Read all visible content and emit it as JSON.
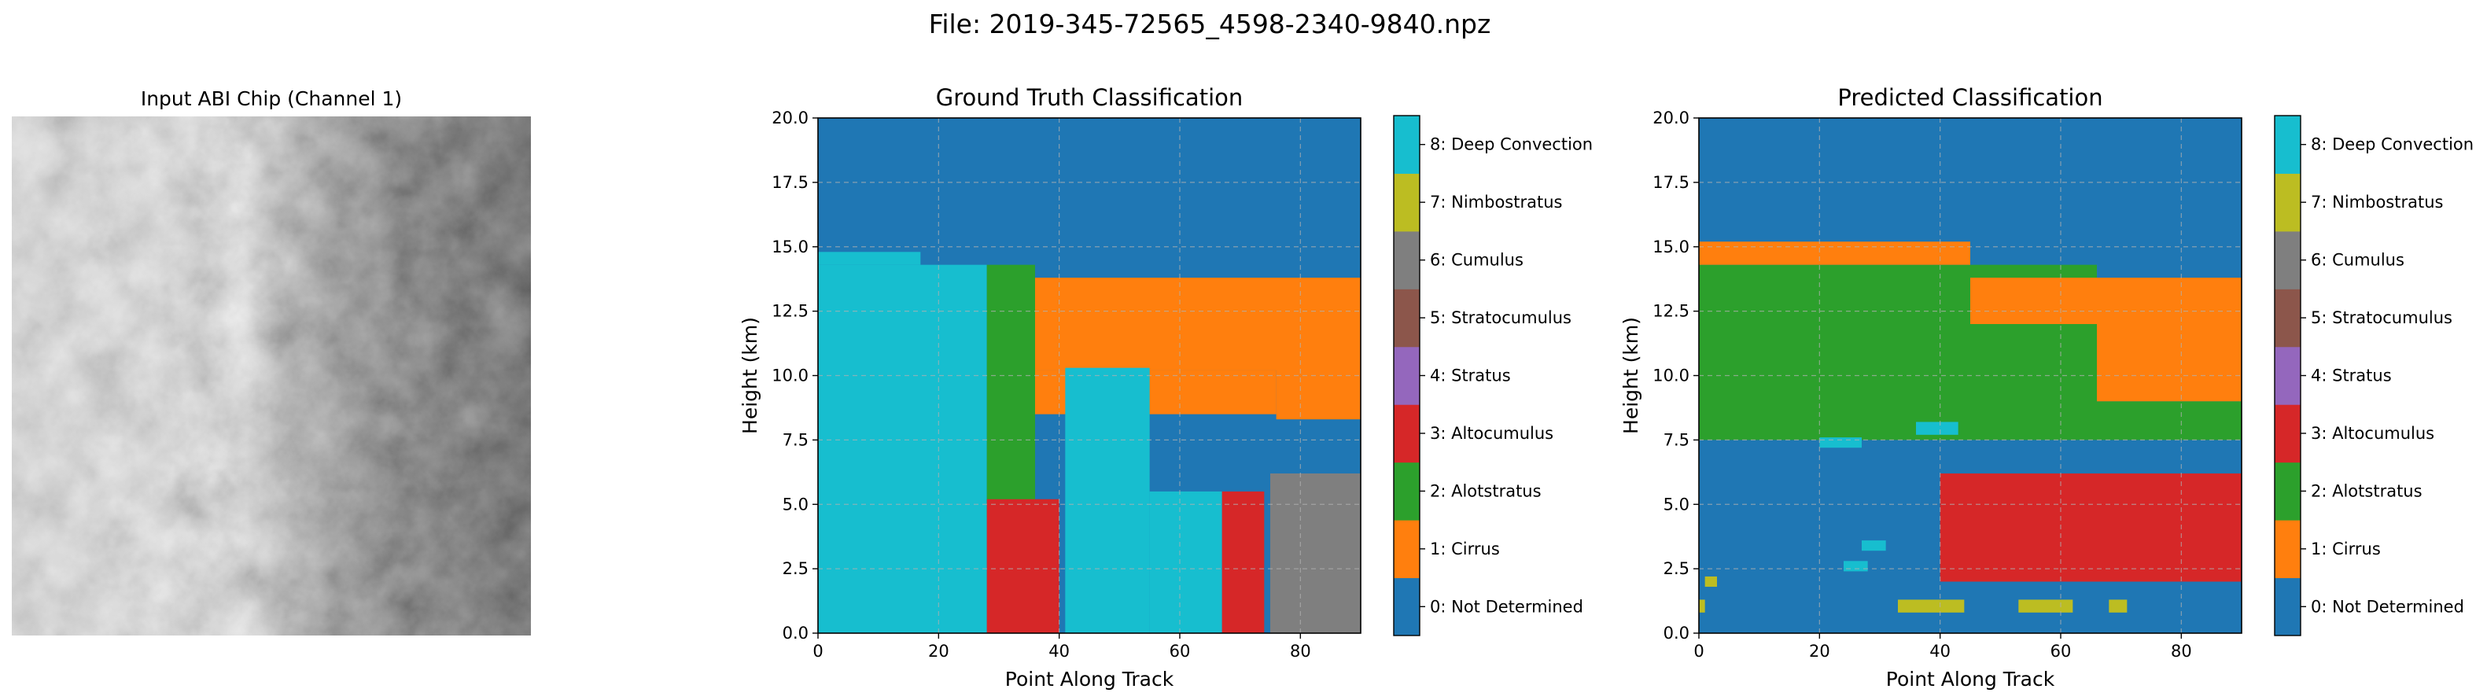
{
  "figure": {
    "suptitle": "File: 2019-345-72565_4598-2340-9840.npz"
  },
  "panels": {
    "input_chip": {
      "title": "Input ABI Chip (Channel 1)"
    },
    "ground_truth": {
      "title": "Ground Truth Classification"
    },
    "predicted": {
      "title": "Predicted Classification"
    }
  },
  "colorbar": {
    "classes": [
      {
        "label": "0: Not Determined",
        "color": "#1f77b4"
      },
      {
        "label": "1: Cirrus",
        "color": "#ff7f0e"
      },
      {
        "label": "2: Alotstratus",
        "color": "#2ca02c"
      },
      {
        "label": "3: Altocumulus",
        "color": "#d62728"
      },
      {
        "label": "4: Stratus",
        "color": "#9467bd"
      },
      {
        "label": "5: Stratocumulus",
        "color": "#8c564b"
      },
      {
        "label": "6: Cumulus",
        "color": "#7f7f7f"
      },
      {
        "label": "7: Nimbostratus",
        "color": "#bcbd22"
      },
      {
        "label": "8: Deep Convection",
        "color": "#17becf"
      }
    ]
  },
  "chart_data": [
    {
      "type": "heatmap",
      "title": "Ground Truth Classification",
      "xlabel": "Point Along Track",
      "ylabel": "Height (km)",
      "xlim": [
        0,
        90
      ],
      "ylim": [
        0,
        20
      ],
      "xticks": [
        "0",
        "20",
        "40",
        "60",
        "80"
      ],
      "yticks": [
        "0.0",
        "2.5",
        "5.0",
        "7.5",
        "10.0",
        "12.5",
        "15.0",
        "17.5",
        "20.0"
      ],
      "grid": true,
      "background_class": 0,
      "regions": [
        {
          "class": 8,
          "x": [
            0,
            28
          ],
          "y": [
            0,
            14.3
          ]
        },
        {
          "class": 8,
          "x": [
            0,
            17
          ],
          "y": [
            14.3,
            14.8
          ]
        },
        {
          "class": 2,
          "x": [
            28,
            36
          ],
          "y": [
            4.5,
            14.3
          ]
        },
        {
          "class": 3,
          "x": [
            28,
            40
          ],
          "y": [
            0,
            5.2
          ]
        },
        {
          "class": 1,
          "x": [
            36,
            90
          ],
          "y": [
            10.2,
            13.8
          ]
        },
        {
          "class": 1,
          "x": [
            36,
            76
          ],
          "y": [
            8.5,
            10.2
          ]
        },
        {
          "class": 1,
          "x": [
            76,
            90
          ],
          "y": [
            8.3,
            13.3
          ]
        },
        {
          "class": 8,
          "x": [
            41,
            55
          ],
          "y": [
            0,
            10.3
          ]
        },
        {
          "class": 8,
          "x": [
            55,
            67
          ],
          "y": [
            0,
            5.5
          ]
        },
        {
          "class": 3,
          "x": [
            67,
            74
          ],
          "y": [
            0,
            5.5
          ]
        },
        {
          "class": 6,
          "x": [
            75,
            90
          ],
          "y": [
            0,
            6.2
          ]
        }
      ]
    },
    {
      "type": "heatmap",
      "title": "Predicted Classification",
      "xlabel": "Point Along Track",
      "ylabel": "Height (km)",
      "xlim": [
        0,
        90
      ],
      "ylim": [
        0,
        20
      ],
      "xticks": [
        "0",
        "20",
        "40",
        "60",
        "80"
      ],
      "yticks": [
        "0.0",
        "2.5",
        "5.0",
        "7.5",
        "10.0",
        "12.5",
        "15.0",
        "17.5",
        "20.0"
      ],
      "grid": true,
      "background_class": 0,
      "regions": [
        {
          "class": 2,
          "x": [
            0,
            66
          ],
          "y": [
            7.5,
            14.3
          ]
        },
        {
          "class": 2,
          "x": [
            66,
            90
          ],
          "y": [
            7.5,
            9.0
          ]
        },
        {
          "class": 1,
          "x": [
            0,
            45
          ],
          "y": [
            14.3,
            15.2
          ]
        },
        {
          "class": 1,
          "x": [
            45,
            90
          ],
          "y": [
            12.0,
            13.8
          ]
        },
        {
          "class": 1,
          "x": [
            66,
            90
          ],
          "y": [
            9.0,
            12.0
          ]
        },
        {
          "class": 3,
          "x": [
            40,
            90
          ],
          "y": [
            2.0,
            6.2
          ]
        },
        {
          "class": 8,
          "x": [
            20,
            27
          ],
          "y": [
            7.2,
            7.6
          ]
        },
        {
          "class": 8,
          "x": [
            36,
            43
          ],
          "y": [
            7.7,
            8.2
          ]
        },
        {
          "class": 8,
          "x": [
            27,
            31
          ],
          "y": [
            3.2,
            3.6
          ]
        },
        {
          "class": 8,
          "x": [
            24,
            28
          ],
          "y": [
            2.4,
            2.8
          ]
        },
        {
          "class": 7,
          "x": [
            1,
            3
          ],
          "y": [
            1.8,
            2.2
          ]
        },
        {
          "class": 7,
          "x": [
            0,
            1
          ],
          "y": [
            0.8,
            1.3
          ]
        },
        {
          "class": 7,
          "x": [
            33,
            44
          ],
          "y": [
            0.8,
            1.3
          ]
        },
        {
          "class": 7,
          "x": [
            53,
            62
          ],
          "y": [
            0.8,
            1.3
          ]
        },
        {
          "class": 7,
          "x": [
            68,
            71
          ],
          "y": [
            0.8,
            1.3
          ]
        }
      ]
    }
  ]
}
